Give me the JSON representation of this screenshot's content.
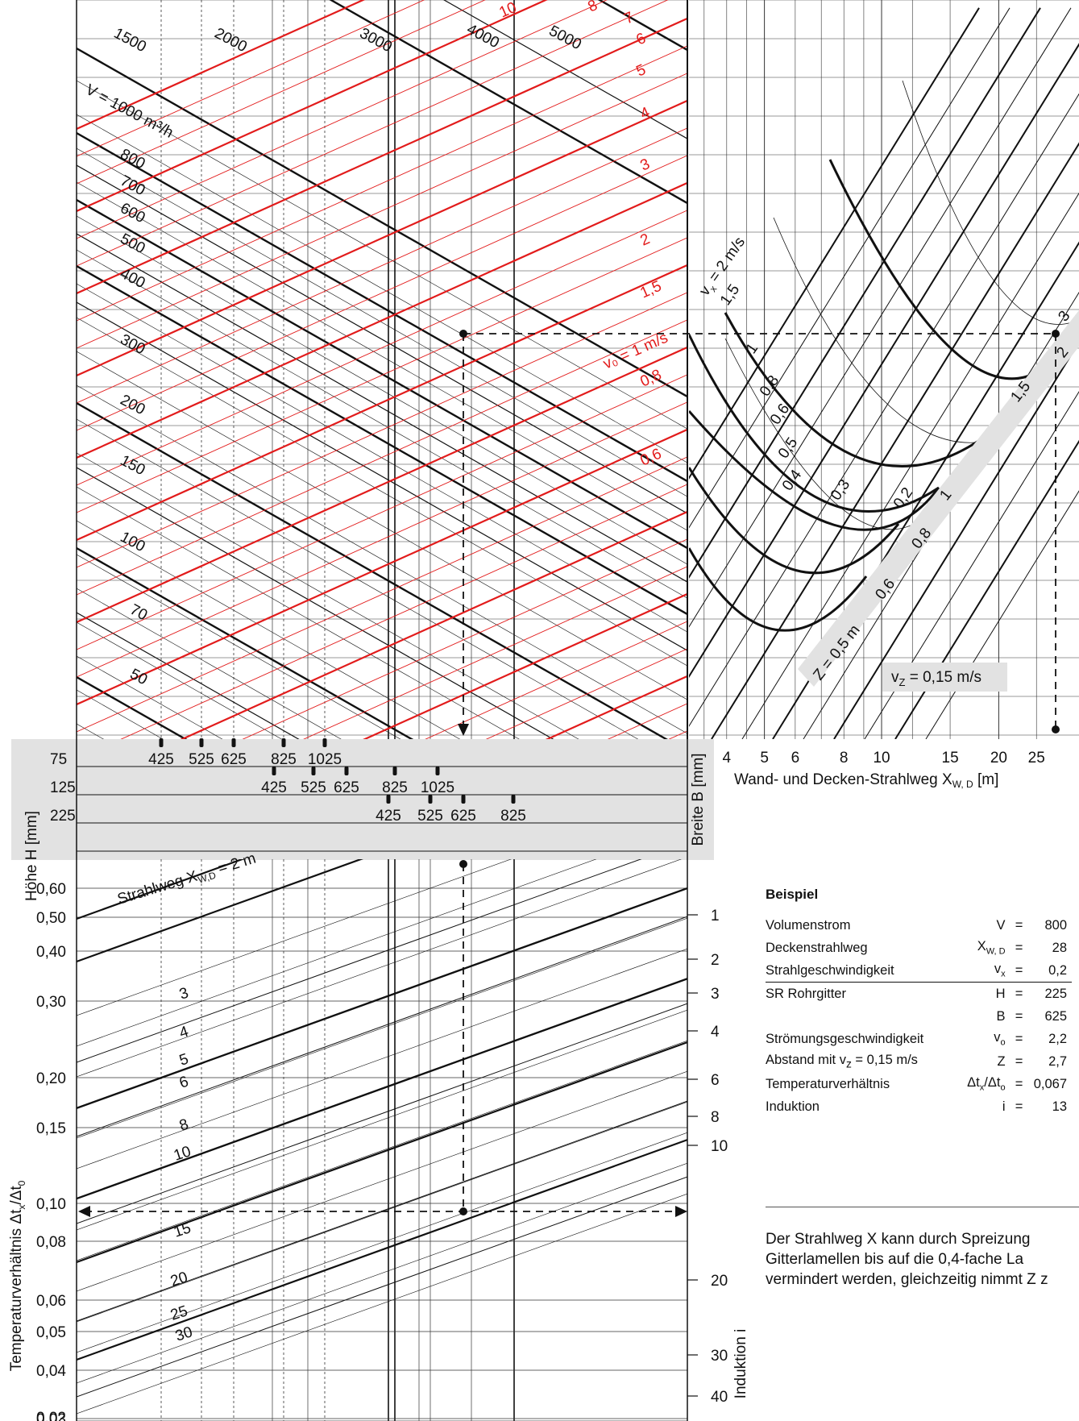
{
  "chart_data": [
    {
      "type": "line",
      "panel": "top-left",
      "x_scale": "log",
      "series_black": [
        {
          "name": "V = 1000 m³/h"
        },
        {
          "name": "800"
        },
        {
          "name": "700"
        },
        {
          "name": "600"
        },
        {
          "name": "500"
        },
        {
          "name": "400"
        },
        {
          "name": "300"
        },
        {
          "name": "200"
        },
        {
          "name": "150"
        },
        {
          "name": "100"
        },
        {
          "name": "70"
        },
        {
          "name": "50"
        },
        {
          "name": "1500"
        },
        {
          "name": "2000"
        },
        {
          "name": "3000"
        },
        {
          "name": "4000"
        },
        {
          "name": "5000"
        }
      ],
      "series_red": [
        {
          "name": "10"
        },
        {
          "name": "8"
        },
        {
          "name": "7"
        },
        {
          "name": "6"
        },
        {
          "name": "5"
        },
        {
          "name": "4"
        },
        {
          "name": "3"
        },
        {
          "name": "2"
        },
        {
          "name": "1,5"
        },
        {
          "name": "v₀ = 1 m/s"
        },
        {
          "name": "0,8"
        },
        {
          "name": "0,6"
        }
      ],
      "colors": {
        "black": "#111111",
        "red": "#e21b1b"
      }
    },
    {
      "type": "line",
      "panel": "top-right",
      "x_scale": "log",
      "x_ticks": [
        "4",
        "5",
        "6",
        "8",
        "10",
        "15",
        "20",
        "25"
      ],
      "xlabel": "Wand- und Decken-Strahlweg X",
      "xlabel_sub": "W, D",
      "xlabel_unit": " [m]",
      "vx_labels": [
        "v",
        "x",
        " = 2 m/s",
        "1,5",
        "1",
        "0,8",
        "0,6",
        "0,5",
        "0,4",
        "0,3",
        "0,2"
      ],
      "z_labels": [
        "Z = 0,5 m",
        "0,6",
        "0,8",
        "1",
        "1,5",
        "2",
        "3"
      ],
      "annotation": "v",
      "annotation_sub": "Z",
      "annotation_rest": " = 0,15 m/s",
      "band_color": "#e2e2e2"
    },
    {
      "type": "table",
      "panel": "middle-band",
      "ylabel_left": "Höhe H [mm]",
      "ylabel_right": "Breite B [mm]",
      "heights": [
        "75",
        "125",
        "225"
      ],
      "rows": [
        {
          "H": "75",
          "B": [
            "425",
            "525",
            "625",
            "825",
            "1025"
          ]
        },
        {
          "H": "125",
          "B": [
            "425",
            "525",
            "625",
            "825",
            "1025"
          ]
        },
        {
          "H": "225",
          "B": [
            "425",
            "525",
            "625",
            "825"
          ]
        }
      ]
    },
    {
      "type": "line",
      "panel": "bottom",
      "y_scale": "log",
      "y_ticks": [
        "0,60",
        "0,50",
        "0,40",
        "0,30",
        "0,20",
        "0,15",
        "0,10",
        "0,08",
        "0,06",
        "0,05",
        "0,04",
        "0,03",
        "0,02"
      ],
      "ylabel": "Temperaturverhältnis Δt",
      "ylabel_sub1": "x",
      "ylabel_mid": "/Δt",
      "ylabel_sub2": "0",
      "y2_ticks": [
        "1",
        "2",
        "3",
        "4",
        "6",
        "8",
        "10",
        "20",
        "30",
        "40"
      ],
      "y2label": "Induktion i",
      "series_label_first": "Strahlweg X",
      "series_label_first_sub": "W,D",
      "series_label_first_rest": " = 2 m",
      "series_labels": [
        "3",
        "4",
        "5",
        "6",
        "8",
        "10",
        "15",
        "20",
        "25",
        "30"
      ]
    }
  ],
  "example": {
    "title": "Beispiel",
    "rows": [
      {
        "label": "Volumenstrom",
        "sym": "V",
        "sub": "",
        "value": "800"
      },
      {
        "label": "Deckenstrahlweg",
        "sym": "X",
        "sub": "W, D",
        "value": "28"
      },
      {
        "label": "Strahlgeschwindigkeit",
        "sym": "v",
        "sub": "x",
        "value": "0,2"
      },
      {
        "label": "SR Rohrgitter",
        "sym": "H",
        "sub": "",
        "value": "225"
      },
      {
        "label": "",
        "sym": "B",
        "sub": "",
        "value": "625"
      },
      {
        "label": "Strömungsgeschwindigkeit",
        "sym": "v",
        "sub": "o",
        "value": "2,2"
      },
      {
        "label": "Abstand mit v",
        "label_sub": "z",
        "label_rest": " = 0,15 m/s",
        "sym": "Z",
        "sub": "",
        "value": "2,7"
      },
      {
        "label": "Temperaturverhältnis",
        "sym": "Δt",
        "sub": "x",
        "sym2": "/Δt",
        "sub2": "o",
        "value": "0,067"
      },
      {
        "label": "Induktion",
        "sym": "i",
        "sub": "",
        "value": "13"
      }
    ],
    "eq": "="
  },
  "note": {
    "lines": [
      "Der Strahlweg X kann durch Spreizung",
      "Gitterlamellen bis auf die 0,4-fache La",
      "vermindert werden, gleichzeitig nimmt Z z"
    ]
  }
}
